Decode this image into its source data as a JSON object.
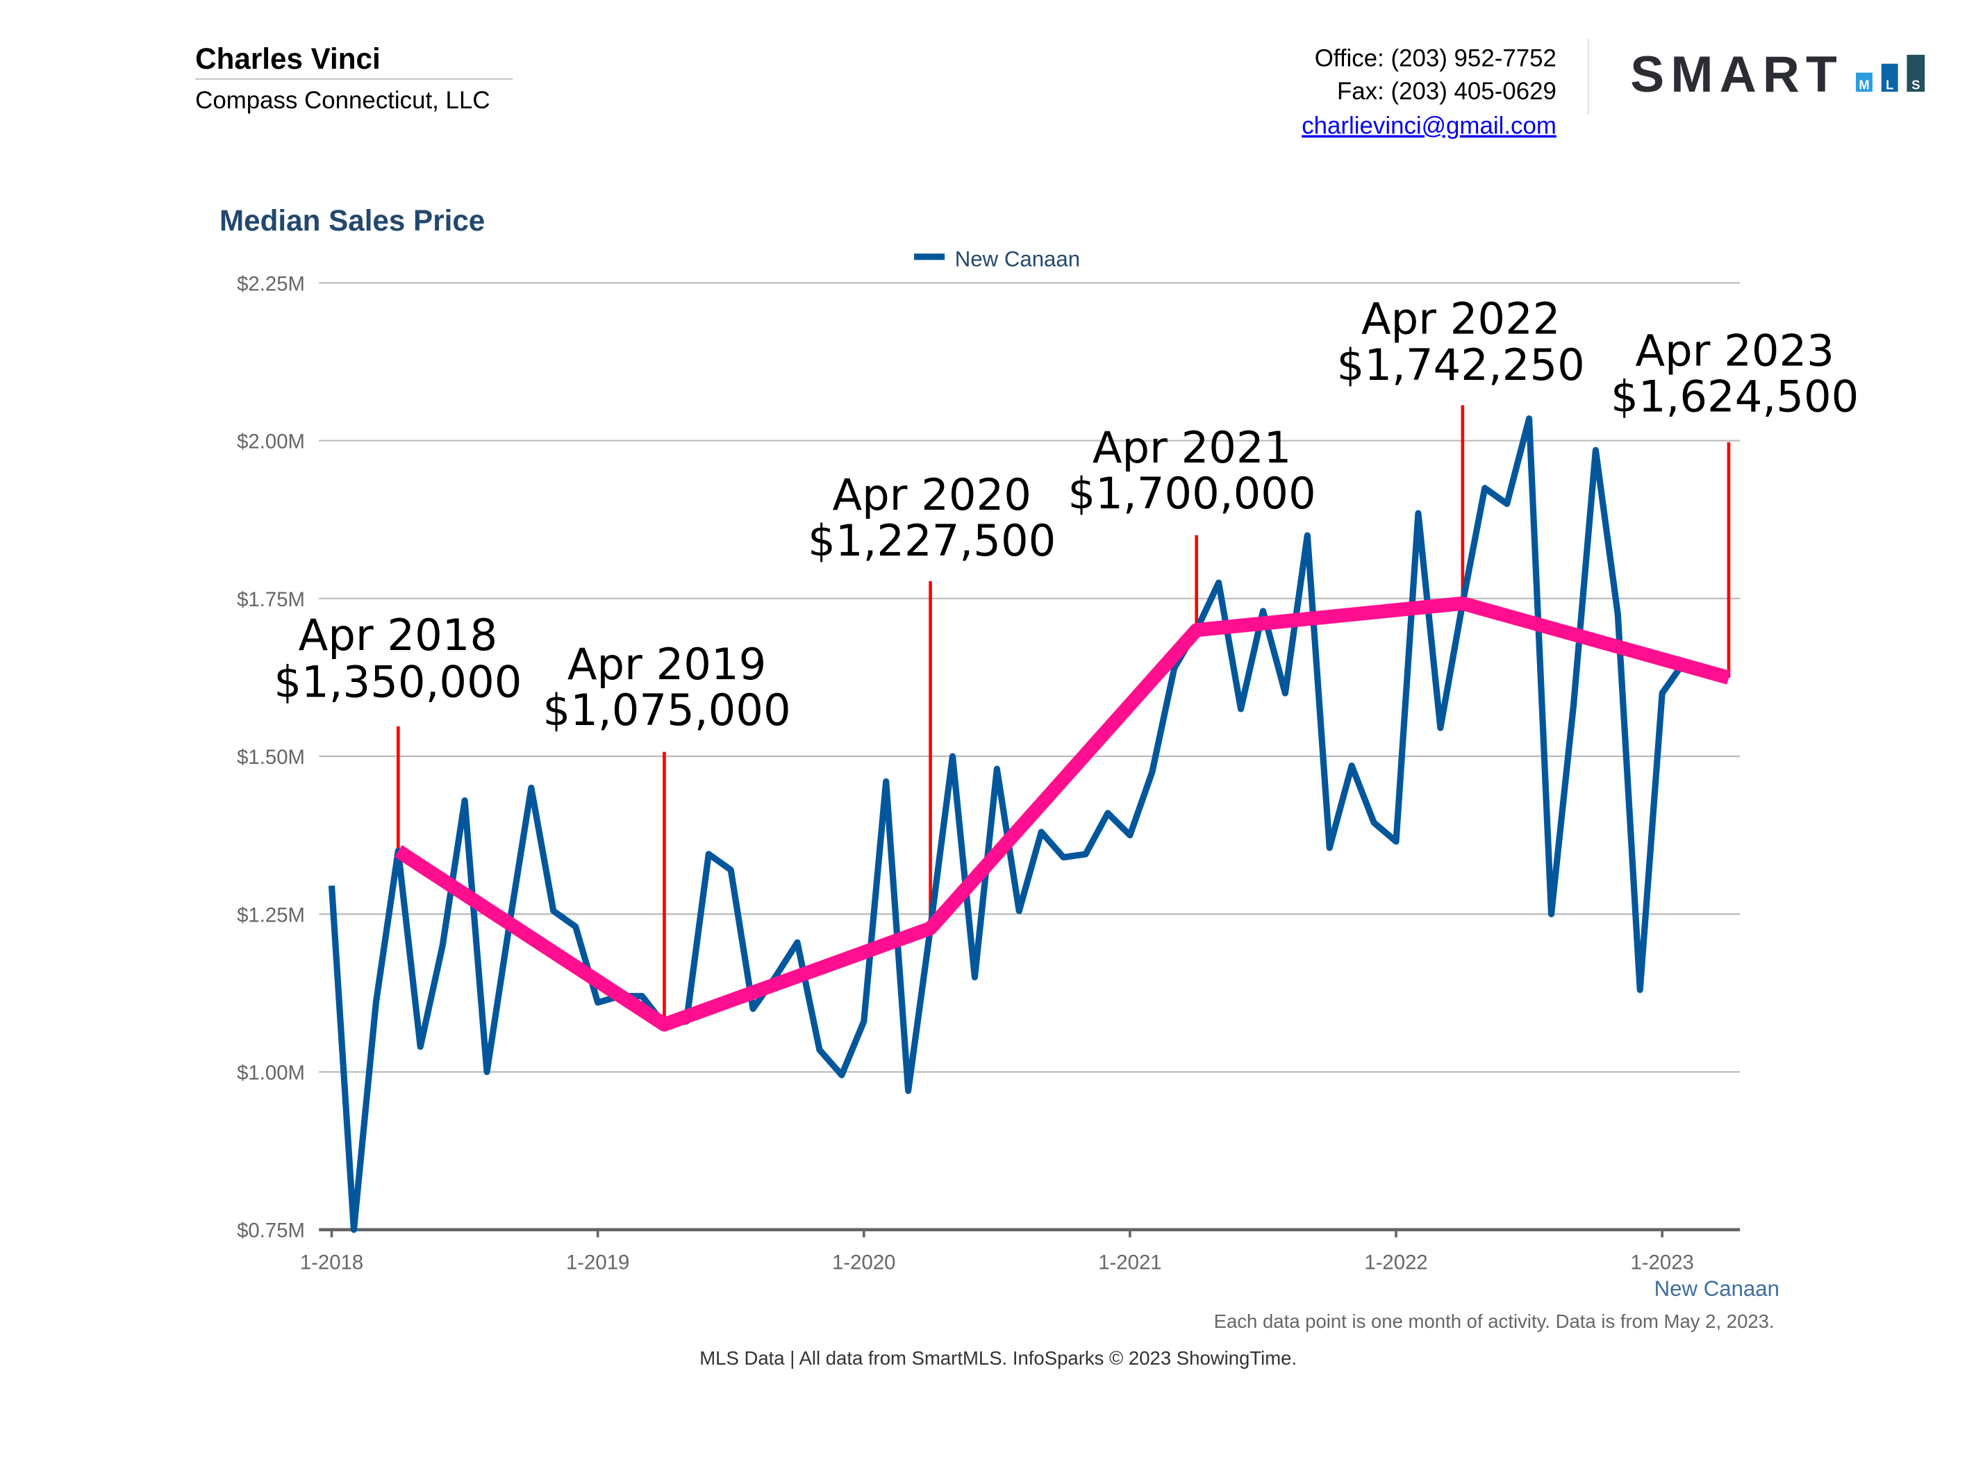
{
  "agent": {
    "name": "Charles Vinci",
    "company": "Compass Connecticut, LLC"
  },
  "contact": {
    "office": "Office: (203) 952-7752",
    "fax": "Fax: (203) 405-0629",
    "email": "charlievinci@gmail.com"
  },
  "logo": {
    "text": "SMART",
    "blocks": [
      "M",
      "L",
      "S"
    ],
    "colors": [
      "#2b2d33",
      "#2a9ce0",
      "#0a66a8",
      "#234f5e"
    ]
  },
  "chart_data": {
    "type": "line",
    "title": "Median Sales Price",
    "legend": {
      "entries": [
        "New Canaan"
      ],
      "placement": "top-center"
    },
    "grid": true,
    "ylim": [
      750000,
      2250000
    ],
    "y_ticks": [
      "$0.75M",
      "$1.00M",
      "$1.25M",
      "$1.50M",
      "$1.75M",
      "$2.00M",
      "$2.25M"
    ],
    "x_ticks": [
      "1-2018",
      "1-2019",
      "1-2020",
      "1-2021",
      "1-2022",
      "1-2023"
    ],
    "x_axis_caption": "New Canaan",
    "colors": {
      "series": "#02579c",
      "trend": "#ff0f8f",
      "annotation_line": "#ff0000"
    },
    "series": [
      {
        "name": "New Canaan",
        "x": [
          "1-2018",
          "2-2018",
          "3-2018",
          "4-2018",
          "5-2018",
          "6-2018",
          "7-2018",
          "8-2018",
          "9-2018",
          "10-2018",
          "11-2018",
          "12-2018",
          "1-2019",
          "2-2019",
          "3-2019",
          "4-2019",
          "5-2019",
          "6-2019",
          "7-2019",
          "8-2019",
          "9-2019",
          "10-2019",
          "11-2019",
          "12-2019",
          "1-2020",
          "2-2020",
          "3-2020",
          "4-2020",
          "5-2020",
          "6-2020",
          "7-2020",
          "8-2020",
          "9-2020",
          "10-2020",
          "11-2020",
          "12-2020",
          "1-2021",
          "2-2021",
          "3-2021",
          "4-2021",
          "5-2021",
          "6-2021",
          "7-2021",
          "8-2021",
          "9-2021",
          "10-2021",
          "11-2021",
          "12-2021",
          "1-2022",
          "2-2022",
          "3-2022",
          "4-2022",
          "5-2022",
          "6-2022",
          "7-2022",
          "8-2022",
          "9-2022",
          "10-2022",
          "11-2022",
          "12-2022",
          "1-2023",
          "2-2023",
          "3-2023",
          "4-2023"
        ],
        "values": [
          1295000,
          750000,
          1110000,
          1350000,
          1040000,
          1200000,
          1430000,
          1000000,
          1230000,
          1450000,
          1255000,
          1230000,
          1110000,
          1120000,
          1120000,
          1075000,
          1080000,
          1345000,
          1320000,
          1100000,
          1150000,
          1205000,
          1035000,
          995000,
          1080000,
          1460000,
          970000,
          1227500,
          1500000,
          1150000,
          1480000,
          1255000,
          1380000,
          1340000,
          1345000,
          1410000,
          1375000,
          1475000,
          1640000,
          1700000,
          1775000,
          1575000,
          1730000,
          1600000,
          1850000,
          1355000,
          1485000,
          1395000,
          1365000,
          1885000,
          1545000,
          1742250,
          1925000,
          1900000,
          2035000,
          1250000,
          1580000,
          1985000,
          1725000,
          1130000,
          1600000,
          1650000,
          1635000,
          1624500
        ]
      }
    ],
    "annotations": [
      {
        "label": "Apr 2018",
        "value_text": "$1,350,000",
        "x": "4-2018",
        "value": 1350000
      },
      {
        "label": "Apr 2019",
        "value_text": "$1,075,000",
        "x": "4-2019",
        "value": 1075000
      },
      {
        "label": "Apr 2020",
        "value_text": "$1,227,500",
        "x": "4-2020",
        "value": 1227500
      },
      {
        "label": "Apr 2021",
        "value_text": "$1,700,000",
        "x": "4-2021",
        "value": 1700000
      },
      {
        "label": "Apr 2022",
        "value_text": "$1,742,250",
        "x": "4-2022",
        "value": 1742250
      },
      {
        "label": "Apr 2023",
        "value_text": "$1,624,500",
        "x": "4-2023",
        "value": 1624500
      }
    ]
  },
  "footer": {
    "note": "Each data point is one month of activity. Data is from May 2, 2023.",
    "credit": "MLS Data | All data from SmartMLS. InfoSparks © 2023 ShowingTime."
  }
}
